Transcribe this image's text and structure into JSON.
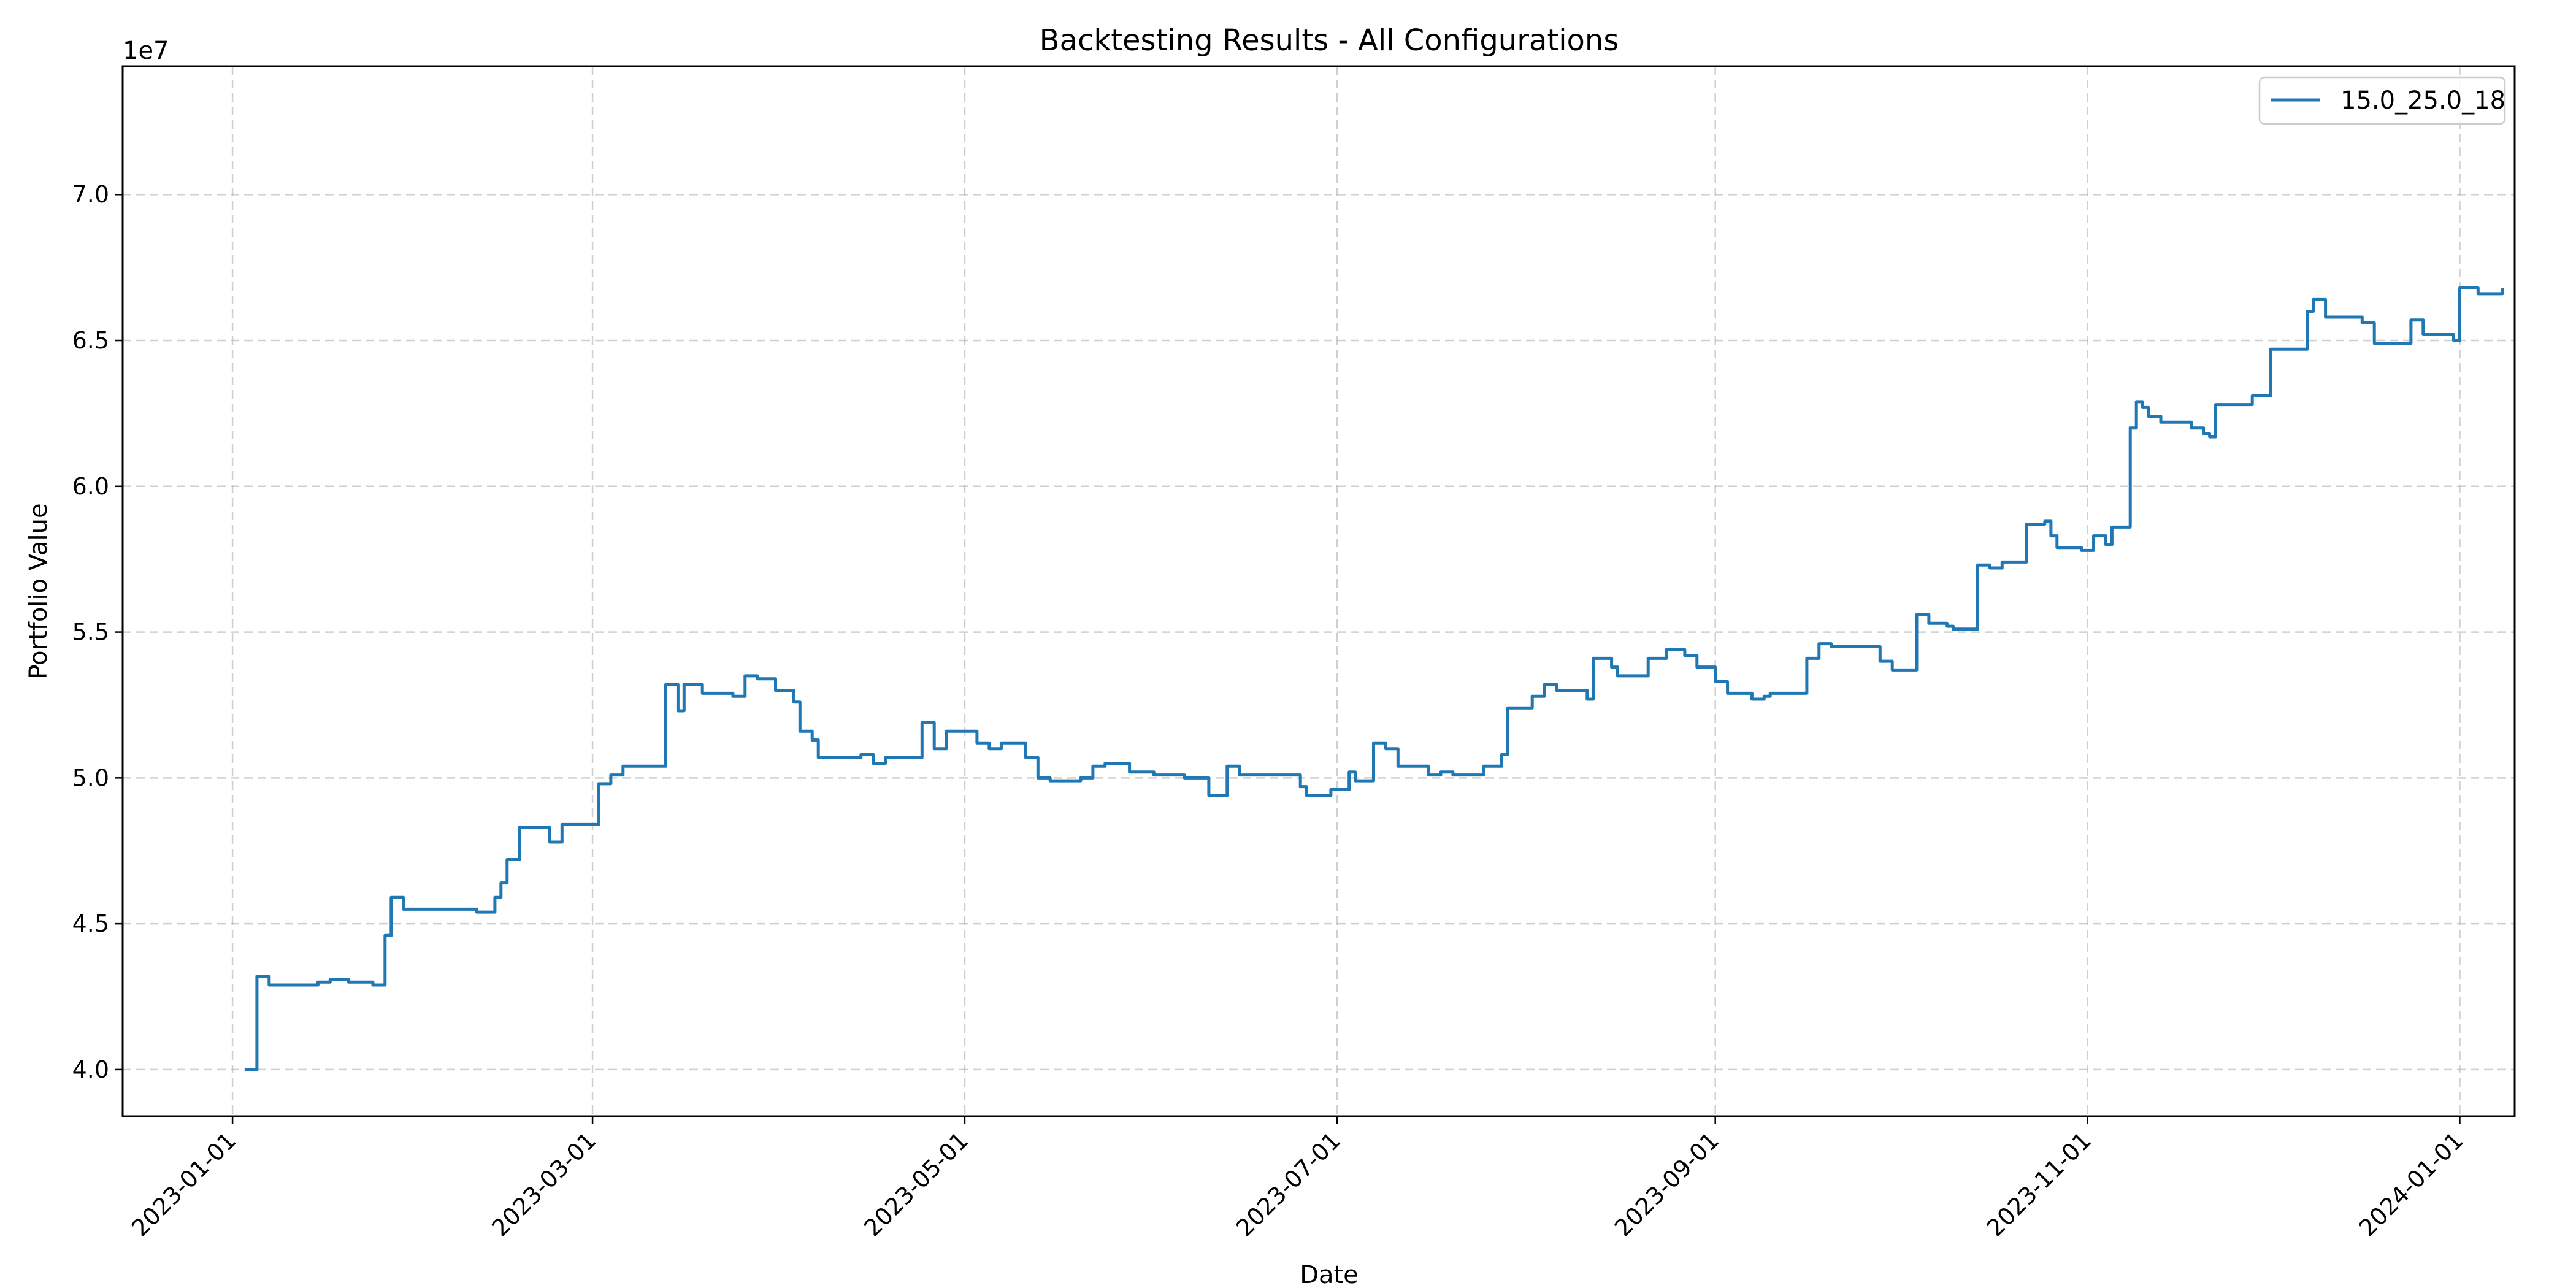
{
  "chart_data": {
    "type": "line",
    "title": "Backtesting Results - All Configurations",
    "xlabel": "Date",
    "ylabel": "Portfolio Value",
    "y_multiplier_label": "1e7",
    "xlim": [
      "2022-12-14",
      "2024-01-10"
    ],
    "ylim": [
      3.84,
      7.44
    ],
    "x_ticks": [
      "2023-01-01",
      "2023-03-01",
      "2023-05-01",
      "2023-07-01",
      "2023-09-01",
      "2023-11-01",
      "2024-01-01"
    ],
    "y_ticks": [
      {
        "value": 4.0,
        "label": "4.0"
      },
      {
        "value": 4.5,
        "label": "4.5"
      },
      {
        "value": 5.0,
        "label": "5.0"
      },
      {
        "value": 5.5,
        "label": "5.5"
      },
      {
        "value": 6.0,
        "label": "6.0"
      },
      {
        "value": 6.5,
        "label": "6.5"
      },
      {
        "value": 7.0,
        "label": "7.0"
      }
    ],
    "grid": true,
    "legend_position": "top-right",
    "series": [
      {
        "name": "15.0_25.0_18",
        "color": "#1f77b4",
        "step": "post",
        "points": [
          [
            "2023-01-03",
            4.0
          ],
          [
            "2023-01-05",
            4.32
          ],
          [
            "2023-01-07",
            4.29
          ],
          [
            "2023-01-08",
            4.29
          ],
          [
            "2023-01-15",
            4.3
          ],
          [
            "2023-01-17",
            4.31
          ],
          [
            "2023-01-20",
            4.3
          ],
          [
            "2023-01-24",
            4.29
          ],
          [
            "2023-01-26",
            4.46
          ],
          [
            "2023-01-27",
            4.59
          ],
          [
            "2023-01-29",
            4.55
          ],
          [
            "2023-02-10",
            4.54
          ],
          [
            "2023-02-13",
            4.59
          ],
          [
            "2023-02-14",
            4.64
          ],
          [
            "2023-02-15",
            4.72
          ],
          [
            "2023-02-17",
            4.83
          ],
          [
            "2023-02-22",
            4.78
          ],
          [
            "2023-02-24",
            4.84
          ],
          [
            "2023-03-02",
            4.98
          ],
          [
            "2023-03-04",
            5.01
          ],
          [
            "2023-03-06",
            5.04
          ],
          [
            "2023-03-13",
            5.32
          ],
          [
            "2023-03-15",
            5.23
          ],
          [
            "2023-03-16",
            5.32
          ],
          [
            "2023-03-19",
            5.29
          ],
          [
            "2023-03-24",
            5.28
          ],
          [
            "2023-03-26",
            5.35
          ],
          [
            "2023-03-28",
            5.34
          ],
          [
            "2023-03-31",
            5.3
          ],
          [
            "2023-04-03",
            5.26
          ],
          [
            "2023-04-04",
            5.16
          ],
          [
            "2023-04-06",
            5.13
          ],
          [
            "2023-04-07",
            5.07
          ],
          [
            "2023-04-14",
            5.08
          ],
          [
            "2023-04-16",
            5.05
          ],
          [
            "2023-04-18",
            5.07
          ],
          [
            "2023-04-24",
            5.19
          ],
          [
            "2023-04-26",
            5.1
          ],
          [
            "2023-04-28",
            5.16
          ],
          [
            "2023-05-03",
            5.12
          ],
          [
            "2023-05-05",
            5.1
          ],
          [
            "2023-05-07",
            5.12
          ],
          [
            "2023-05-11",
            5.07
          ],
          [
            "2023-05-13",
            5.0
          ],
          [
            "2023-05-15",
            4.99
          ],
          [
            "2023-05-16",
            4.99
          ],
          [
            "2023-05-20",
            5.0
          ],
          [
            "2023-05-22",
            5.04
          ],
          [
            "2023-05-24",
            5.05
          ],
          [
            "2023-05-28",
            5.02
          ],
          [
            "2023-06-01",
            5.01
          ],
          [
            "2023-06-06",
            5.0
          ],
          [
            "2023-06-10",
            4.94
          ],
          [
            "2023-06-13",
            5.04
          ],
          [
            "2023-06-15",
            5.01
          ],
          [
            "2023-06-25",
            4.97
          ],
          [
            "2023-06-26",
            4.94
          ],
          [
            "2023-06-30",
            4.96
          ],
          [
            "2023-07-03",
            5.02
          ],
          [
            "2023-07-04",
            4.99
          ],
          [
            "2023-07-07",
            5.12
          ],
          [
            "2023-07-09",
            5.1
          ],
          [
            "2023-07-11",
            5.04
          ],
          [
            "2023-07-16",
            5.01
          ],
          [
            "2023-07-18",
            5.02
          ],
          [
            "2023-07-20",
            5.01
          ],
          [
            "2023-07-25",
            5.04
          ],
          [
            "2023-07-28",
            5.08
          ],
          [
            "2023-07-29",
            5.24
          ],
          [
            "2023-08-02",
            5.28
          ],
          [
            "2023-08-04",
            5.32
          ],
          [
            "2023-08-06",
            5.3
          ],
          [
            "2023-08-11",
            5.27
          ],
          [
            "2023-08-12",
            5.41
          ],
          [
            "2023-08-15",
            5.38
          ],
          [
            "2023-08-16",
            5.35
          ],
          [
            "2023-08-21",
            5.41
          ],
          [
            "2023-08-24",
            5.44
          ],
          [
            "2023-08-27",
            5.42
          ],
          [
            "2023-08-29",
            5.38
          ],
          [
            "2023-09-01",
            5.33
          ],
          [
            "2023-09-03",
            5.29
          ],
          [
            "2023-09-07",
            5.27
          ],
          [
            "2023-09-09",
            5.28
          ],
          [
            "2023-09-10",
            5.29
          ],
          [
            "2023-09-16",
            5.41
          ],
          [
            "2023-09-18",
            5.46
          ],
          [
            "2023-09-20",
            5.45
          ],
          [
            "2023-09-28",
            5.4
          ],
          [
            "2023-09-30",
            5.37
          ],
          [
            "2023-10-04",
            5.56
          ],
          [
            "2023-10-06",
            5.53
          ],
          [
            "2023-10-09",
            5.52
          ],
          [
            "2023-10-10",
            5.51
          ],
          [
            "2023-10-14",
            5.73
          ],
          [
            "2023-10-16",
            5.72
          ],
          [
            "2023-10-18",
            5.74
          ],
          [
            "2023-10-22",
            5.87
          ],
          [
            "2023-10-25",
            5.88
          ],
          [
            "2023-10-26",
            5.83
          ],
          [
            "2023-10-27",
            5.79
          ],
          [
            "2023-10-31",
            5.78
          ],
          [
            "2023-11-02",
            5.83
          ],
          [
            "2023-11-04",
            5.8
          ],
          [
            "2023-11-05",
            5.86
          ],
          [
            "2023-11-08",
            6.2
          ],
          [
            "2023-11-09",
            6.29
          ],
          [
            "2023-11-10",
            6.27
          ],
          [
            "2023-11-11",
            6.24
          ],
          [
            "2023-11-13",
            6.22
          ],
          [
            "2023-11-18",
            6.2
          ],
          [
            "2023-11-20",
            6.18
          ],
          [
            "2023-11-21",
            6.17
          ],
          [
            "2023-11-22",
            6.28
          ],
          [
            "2023-11-28",
            6.31
          ],
          [
            "2023-12-01",
            6.47
          ],
          [
            "2023-12-07",
            6.6
          ],
          [
            "2023-12-08",
            6.64
          ],
          [
            "2023-12-10",
            6.58
          ],
          [
            "2023-12-16",
            6.56
          ],
          [
            "2023-12-18",
            6.49
          ],
          [
            "2023-12-24",
            6.57
          ],
          [
            "2023-12-26",
            6.52
          ],
          [
            "2023-12-31",
            6.5
          ],
          [
            "2024-01-01",
            6.68
          ],
          [
            "2024-01-04",
            6.66
          ],
          [
            "2024-01-08",
            6.68
          ]
        ]
      }
    ]
  }
}
